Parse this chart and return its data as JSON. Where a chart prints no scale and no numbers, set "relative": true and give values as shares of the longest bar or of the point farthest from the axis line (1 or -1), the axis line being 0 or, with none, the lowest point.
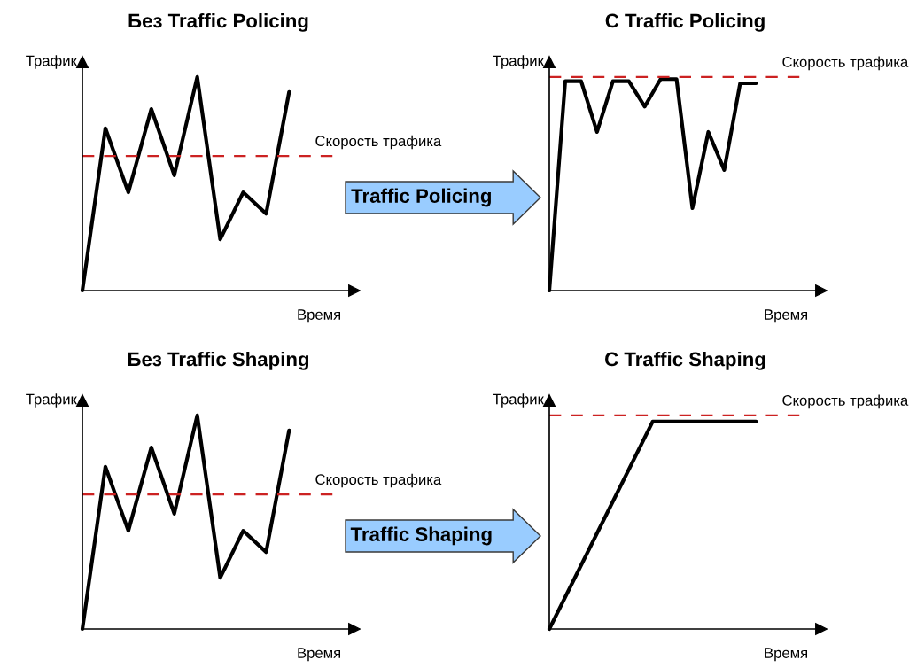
{
  "chart_data": [
    {
      "type": "line",
      "title": "Без Traffic Policing",
      "xlabel": "Время",
      "ylabel": "Трафик",
      "relative": true,
      "categories": [
        null,
        null,
        null,
        null,
        null,
        null,
        null,
        null,
        null,
        null
      ],
      "series": [
        {
          "color": "#000000",
          "values": [
            0,
            0.76,
            0.46,
            0.85,
            0.54,
            1,
            0.24,
            0.46,
            0.36,
            0.93
          ]
        }
      ],
      "ref_lines": [
        {
          "axis": "y",
          "value": 0.63,
          "label": "Скорость трафика",
          "color": "#cc2222",
          "line_style": "dashed"
        }
      ]
    },
    {
      "type": "other",
      "title": "Traffic Policing"
    },
    {
      "type": "line",
      "title": "C Traffic Policing",
      "xlabel": "Время",
      "ylabel": "Трафик",
      "relative": true,
      "categories": [
        null,
        null,
        null,
        null,
        null,
        null,
        null,
        null,
        null,
        null,
        null,
        null,
        null,
        null
      ],
      "series": [
        {
          "color": "#000000",
          "values": [
            0,
            0.99,
            0.99,
            0.75,
            0.99,
            0.99,
            0.87,
            1,
            1,
            0.39,
            0.75,
            0.57,
            0.98,
            0.98
          ]
        }
      ],
      "ref_lines": [
        {
          "axis": "y",
          "value": 1.01,
          "label": "Скорость трафика",
          "color": "#cc2222",
          "line_style": "dashed"
        }
      ]
    },
    {
      "type": "line",
      "title": "Без Traffic Shaping",
      "xlabel": "Время",
      "ylabel": "Трафик",
      "relative": true,
      "categories": [
        null,
        null,
        null,
        null,
        null,
        null,
        null,
        null,
        null,
        null
      ],
      "series": [
        {
          "color": "#000000",
          "values": [
            0,
            0.76,
            0.46,
            0.85,
            0.54,
            1,
            0.24,
            0.46,
            0.36,
            0.93
          ]
        }
      ],
      "ref_lines": [
        {
          "axis": "y",
          "value": 0.63,
          "label": "Скорость трафика",
          "color": "#cc2222",
          "line_style": "dashed"
        }
      ]
    },
    {
      "type": "other",
      "title": "Traffic Shaping"
    },
    {
      "type": "line",
      "title": "C Traffic Shaping",
      "xlabel": "Время",
      "ylabel": "Трафик",
      "relative": true,
      "categories": [
        null,
        null,
        null
      ],
      "series": [
        {
          "color": "#000000",
          "values": [
            0,
            1,
            1
          ]
        }
      ],
      "ref_lines": [
        {
          "axis": "y",
          "value": 1.03,
          "label": "Скорость трафика",
          "color": "#cc2222",
          "line_style": "dashed"
        }
      ]
    }
  ]
}
